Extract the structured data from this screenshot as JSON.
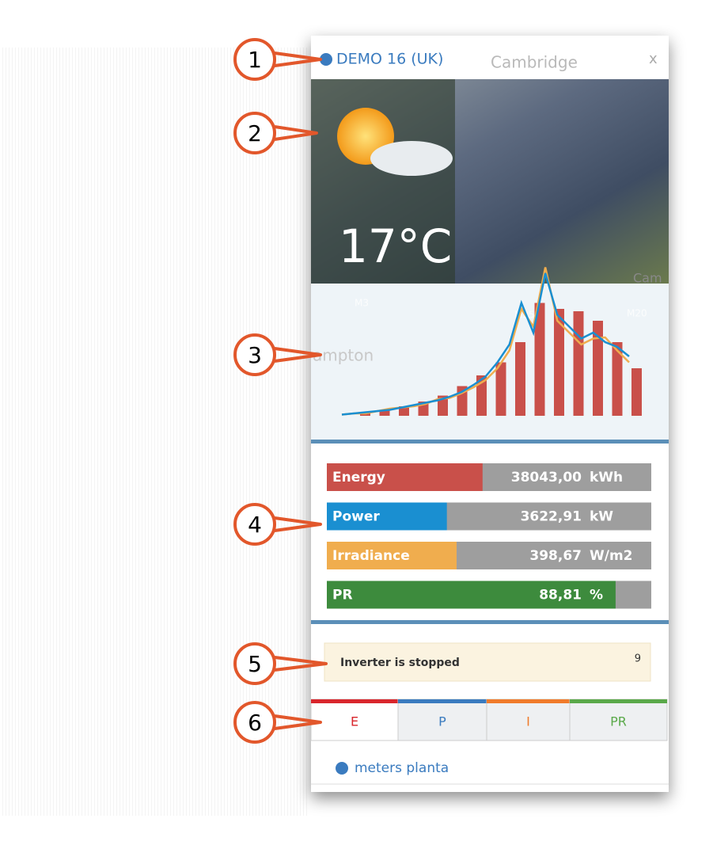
{
  "callouts": [
    "1",
    "2",
    "3",
    "4",
    "5",
    "6"
  ],
  "header": {
    "title": "DEMO 16 (UK)",
    "close": "x"
  },
  "map_labels": [
    "Cambridge",
    "M3",
    "M25",
    "M20",
    "ampton",
    "Cam"
  ],
  "weather": {
    "temperature": "17°C"
  },
  "chart": {
    "bars": [
      2,
      5,
      8,
      12,
      17,
      25,
      34,
      45,
      62,
      95,
      90,
      88,
      80,
      62,
      40
    ],
    "power": [
      1,
      2,
      3,
      4,
      5,
      7,
      9,
      11,
      13,
      16,
      20,
      26,
      33,
      45,
      60,
      95,
      70,
      120,
      85,
      75,
      65,
      70,
      62,
      58,
      50
    ],
    "irradiance": [
      1,
      2,
      2,
      4,
      6,
      7,
      8,
      10,
      14,
      15,
      19,
      24,
      30,
      40,
      55,
      90,
      75,
      125,
      80,
      70,
      60,
      65,
      66,
      55,
      45
    ]
  },
  "metrics": [
    {
      "label": "Energy",
      "value": "38043,00",
      "unit": "kWh",
      "fill": 48,
      "color": "#c9504a"
    },
    {
      "label": "Power",
      "value": "3622,91",
      "unit": "kW",
      "fill": 37,
      "color": "#1a8fd1"
    },
    {
      "label": "Irradiance",
      "value": "398,67",
      "unit": "W/m2",
      "fill": 40,
      "color": "#f0ad4e"
    },
    {
      "label": "PR",
      "value": "88,81",
      "unit": "%",
      "fill": 89,
      "color": "#3d8b3d"
    }
  ],
  "alert": {
    "text": "Inverter is stopped",
    "count": "9"
  },
  "tabs": [
    {
      "label": "E",
      "color": "#d9262c"
    },
    {
      "label": "P",
      "color": "#3a7bbf"
    },
    {
      "label": "I",
      "color": "#f07b2b"
    },
    {
      "label": "PR",
      "color": "#5aa94a"
    }
  ],
  "footer": {
    "link": "meters planta"
  }
}
